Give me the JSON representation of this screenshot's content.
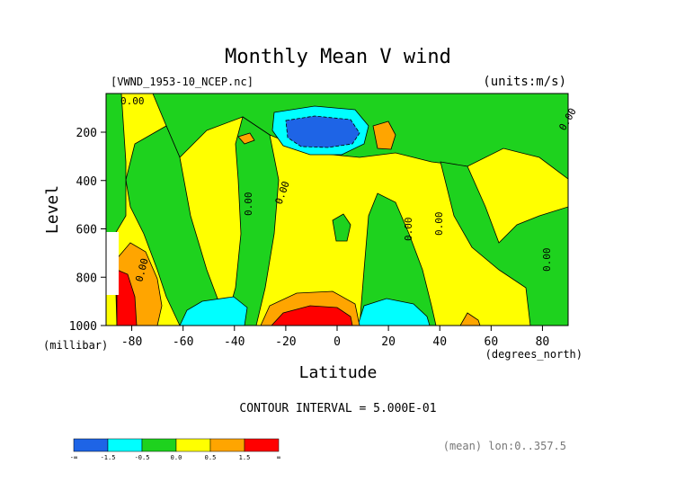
{
  "chart_data": {
    "type": "contour",
    "title": "Monthly Mean V wind",
    "source_label": "[VWND_1953-10_NCEP.nc]",
    "units_label": "(units:m/s)",
    "xlabel": "Latitude",
    "x_units": "(degrees_north)",
    "ylabel": "Level",
    "y_units": "(millibar)",
    "x_range": [
      -90,
      90
    ],
    "y_range": [
      1000,
      40
    ],
    "y_reversed": true,
    "x_ticks": [
      -80,
      -60,
      -40,
      -20,
      0,
      20,
      40,
      60,
      80
    ],
    "y_ticks": [
      200,
      400,
      600,
      800,
      1000
    ],
    "contour_interval_text": "CONTOUR INTERVAL = 5.000E-01",
    "contour_line_labels": [
      "0.00",
      "0.00",
      "0.00",
      "0.00",
      "0.00",
      "0.00",
      "0.00",
      "0.00"
    ],
    "footer_note": "(mean) lon:0..357.5",
    "colorbar": {
      "bins": [
        {
          "range": "-inf..-1.5",
          "color": "#1e64e6"
        },
        {
          "range": "-1.5..-0.5",
          "color": "#00ffff"
        },
        {
          "range": "-0.5..0.0",
          "color": "#1ed21e"
        },
        {
          "range": "0.0..0.5",
          "color": "#ffff00"
        },
        {
          "range": "0.5..1.5",
          "color": "#ffa500"
        },
        {
          "range": "1.5..inf",
          "color": "#ff0000"
        }
      ],
      "tick_labels": [
        "-∞",
        "-1.5",
        "-0.5",
        "0.0",
        "0.5",
        "1.5",
        "∞"
      ]
    },
    "features": [
      {
        "name": "upper-southern-negative-core",
        "lat": -10,
        "level": 180,
        "value_sign": "negative"
      },
      {
        "name": "surface-equatorial-positive-core",
        "lat": -10,
        "level": 980,
        "value_sign": "positive"
      },
      {
        "name": "surface-southern-negative-band",
        "lat": -50,
        "level": 970,
        "value_sign": "negative"
      },
      {
        "name": "antarctic-surface-positive",
        "lat": -82,
        "level": 850,
        "value_sign": "positive"
      },
      {
        "name": "surface-20N-negative",
        "lat": 25,
        "level": 960,
        "value_sign": "negative"
      },
      {
        "name": "upper-20N-positive",
        "lat": 20,
        "level": 180,
        "value_sign": "positive"
      }
    ]
  }
}
